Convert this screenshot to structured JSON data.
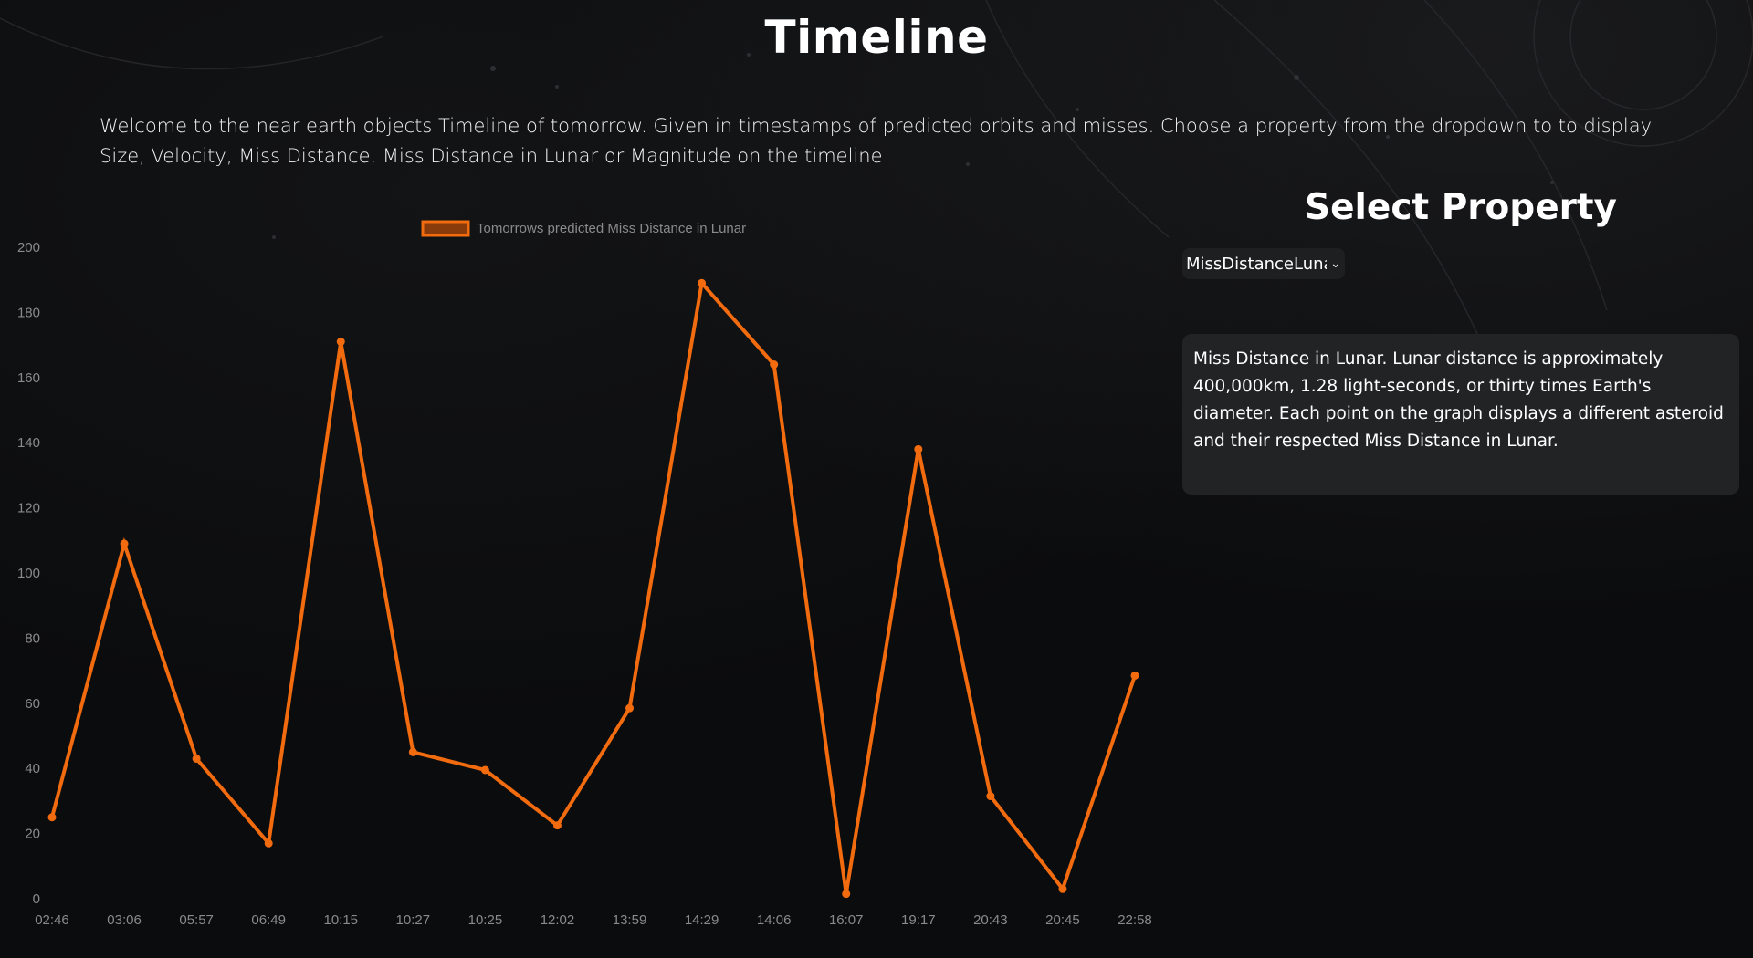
{
  "page": {
    "title": "Timeline",
    "intro": "Welcome to the near earth objects Timeline of tomorrow. Given in timestamps of predicted orbits and misses. Choose a property from the dropdown to to display Size, Velocity, Miss Distance, Miss Distance in Lunar or Magnitude on the timeline"
  },
  "panel": {
    "heading": "Select Property",
    "select_value": "MissDistanceLunar",
    "description": "Miss Distance in Lunar. Lunar distance is approximately 400,000km, 1.28 light-seconds, or thirty times Earth's diameter. Each point on the graph displays a different asteroid and their respected Miss Distance in Lunar."
  },
  "colors": {
    "accent": "#f26b0f",
    "legend_fill": "#8a3b0c",
    "axis_text": "#8a8a8a",
    "background": "#0b0c0e",
    "panel_bg": "#222325"
  },
  "chart_data": {
    "type": "line",
    "x": [
      "02:46",
      "03:06",
      "05:57",
      "06:49",
      "10:15",
      "10:27",
      "10:25",
      "12:02",
      "13:59",
      "14:29",
      "14:06",
      "16:07",
      "19:17",
      "20:43",
      "20:45",
      "22:58"
    ],
    "series": [
      {
        "name": "Tomorrows predicted Miss Distance in Lunar",
        "values": [
          25,
          109,
          43,
          17,
          171,
          45,
          39.5,
          22.5,
          58.5,
          189,
          164,
          1.5,
          138,
          31.5,
          3,
          68.5
        ]
      }
    ],
    "yticks": [
      0,
      20,
      40,
      60,
      80,
      100,
      120,
      140,
      160,
      180,
      200
    ],
    "ylim": [
      0,
      200
    ],
    "grid": false,
    "legend_position": "top-center"
  }
}
